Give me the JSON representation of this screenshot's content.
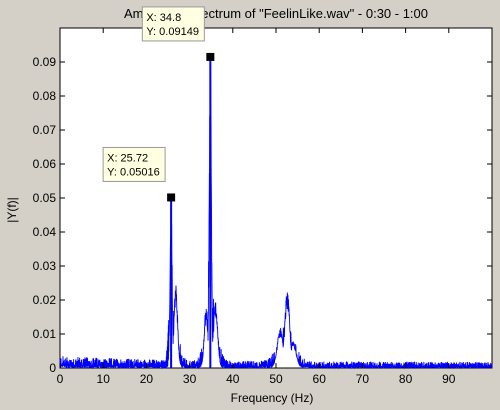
{
  "chart_data": {
    "type": "line",
    "title": "Amplitude Spectrum of \"FeelinLike.wav\" - 0:30 - 1:00",
    "xlabel": "Frequency (Hz)",
    "ylabel": "|Y(f)|",
    "xlim": [
      0,
      100
    ],
    "ylim": [
      0,
      0.1
    ],
    "grid": false,
    "xticks": [
      "0",
      "10",
      "20",
      "30",
      "40",
      "50",
      "60",
      "70",
      "80",
      "90"
    ],
    "yticks": [
      "0",
      "0.01",
      "0.02",
      "0.03",
      "0.04",
      "0.05",
      "0.06",
      "0.07",
      "0.08",
      "0.09"
    ],
    "series": [
      {
        "name": "",
        "color": "#0000ff",
        "peaks": [
          {
            "x": 25.72,
            "y": 0.05016,
            "w": 0.35
          },
          {
            "x": 26.8,
            "y": 0.025,
            "w": 0.6
          },
          {
            "x": 34.8,
            "y": 0.09149,
            "w": 0.35
          },
          {
            "x": 33.8,
            "y": 0.018,
            "w": 0.6
          },
          {
            "x": 36.0,
            "y": 0.02,
            "w": 0.7
          },
          {
            "x": 52.6,
            "y": 0.023,
            "w": 0.8
          },
          {
            "x": 51.0,
            "y": 0.012,
            "w": 1.0
          },
          {
            "x": 54.0,
            "y": 0.008,
            "w": 1.0
          }
        ],
        "noise_floor": 0.003
      }
    ],
    "datatips": [
      {
        "x_label": "X: 34.8",
        "y_label": "Y: 0.09149",
        "x": 34.8,
        "y": 0.09149
      },
      {
        "x_label": "X: 25.72",
        "y_label": "Y: 0.05016",
        "x": 25.72,
        "y": 0.05016
      }
    ]
  }
}
